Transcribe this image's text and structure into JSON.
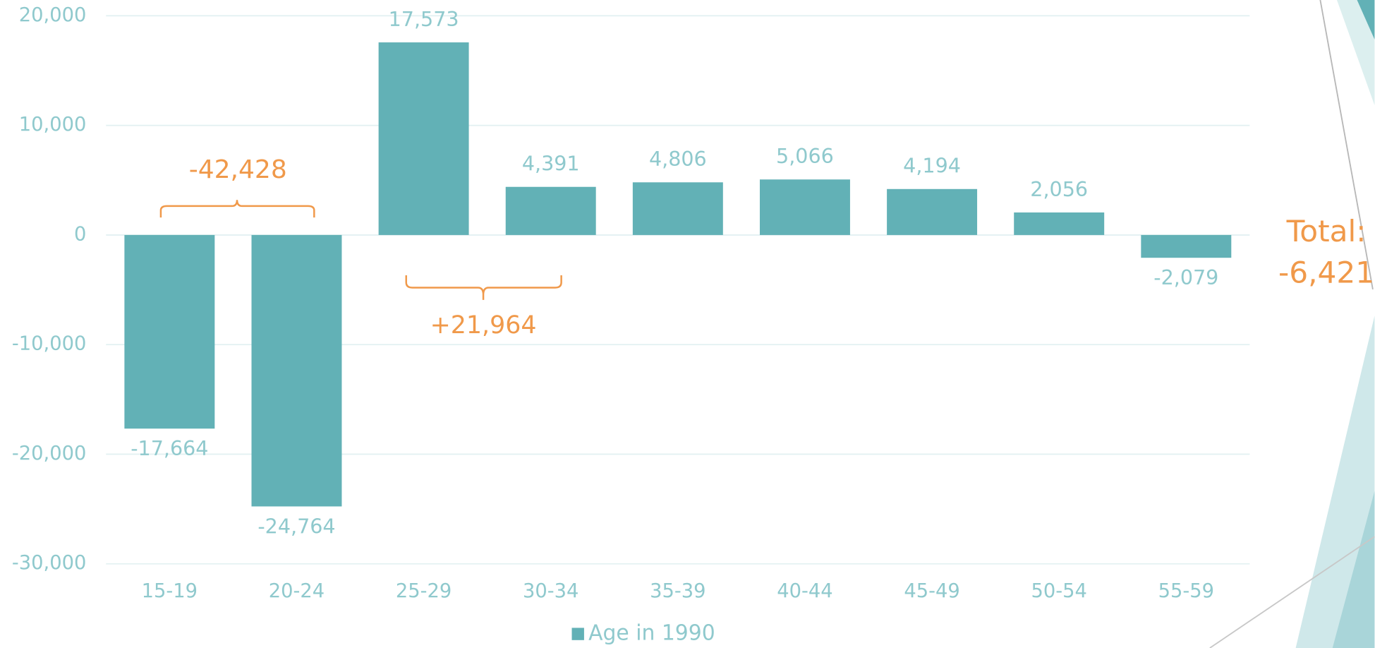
{
  "chart_data": {
    "type": "bar",
    "categories": [
      "15-19",
      "20-24",
      "25-29",
      "30-34",
      "35-39",
      "40-44",
      "45-49",
      "50-54",
      "55-59"
    ],
    "series": [
      {
        "name": "Age in 1990",
        "color": "#62b1b6",
        "values": [
          -17664,
          -24764,
          17573,
          4391,
          4806,
          5066,
          4194,
          2056,
          -2079
        ],
        "value_labels": [
          "-17,664",
          "-24,764",
          "17,573",
          "4,391",
          "4,806",
          "5,066",
          "4,194",
          "2,056",
          "-2,079"
        ]
      }
    ],
    "ylim": [
      -30000,
      20000
    ],
    "yticks": [
      {
        "value": -30000,
        "label": "-30,000"
      },
      {
        "value": -20000,
        "label": "-20,000"
      },
      {
        "value": -10000,
        "label": "-10,000"
      },
      0,
      {
        "value": 10000,
        "label": "10,000"
      },
      {
        "value": 20000,
        "label": "20,000"
      }
    ],
    "grid": true,
    "legend": "bottom",
    "annotations": [
      "-42,428",
      "+21,964",
      "Total:",
      "-6,421"
    ]
  }
}
